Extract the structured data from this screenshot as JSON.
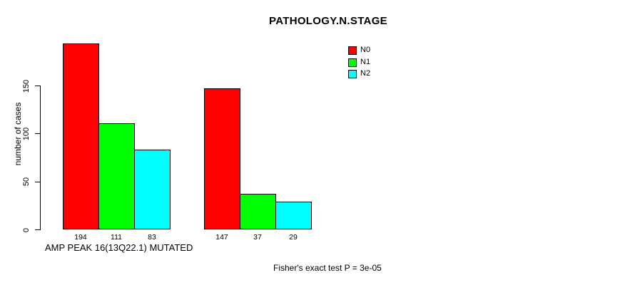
{
  "chart_data": {
    "type": "bar",
    "title": "PATHOLOGY.N.STAGE",
    "ylabel": "number of cases",
    "xlabel": "AMP PEAK 16(13Q22.1) MUTATED",
    "annotation": "Fisher's exact test P = 3e-05",
    "ylim": [
      0,
      150
    ],
    "yticks": [
      0,
      50,
      100,
      150
    ],
    "categories": [
      "AMP PEAK 16(13Q22.1) MUTATED",
      ""
    ],
    "grid": false,
    "bar_value_labels_shown": true,
    "series": [
      {
        "name": "N0",
        "color": "#ff0000",
        "values": [
          194,
          147
        ]
      },
      {
        "name": "N1",
        "color": "#00ff00",
        "values": [
          111,
          37
        ]
      },
      {
        "name": "N2",
        "color": "#00ffff",
        "values": [
          83,
          29
        ]
      }
    ],
    "legend": {
      "position": "top-right",
      "entries": [
        {
          "label": "N0",
          "color": "#ff0000"
        },
        {
          "label": "N1",
          "color": "#00ff00"
        },
        {
          "label": "N2",
          "color": "#00ffff"
        }
      ]
    }
  }
}
